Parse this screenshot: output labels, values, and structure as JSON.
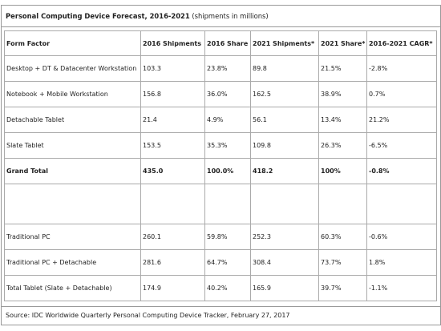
{
  "title": {
    "bold": "Personal Computing Device Forecast, 2016-2021",
    "normal": " (shipments in millions)"
  },
  "headers": [
    "Form Factor",
    "2016 Shipments",
    "2016 Share",
    "2021 Shipments*",
    "2021 Share*",
    "2016-2021 CAGR*"
  ],
  "rows": [
    [
      "Desktop + DT & Datacenter Workstation",
      "103.3",
      "23.8%",
      "89.8",
      "21.5%",
      "-2.8%"
    ],
    [
      "Notebook + Mobile Workstation",
      "156.8",
      "36.0%",
      "162.5",
      "38.9%",
      "0.7%"
    ],
    [
      "Detachable Tablet",
      "21.4",
      "4.9%",
      "56.1",
      "13.4%",
      "21.2%"
    ],
    [
      "Slate Tablet",
      "153.5",
      "35.3%",
      "109.8",
      "26.3%",
      "-6.5%"
    ],
    [
      "Grand Total",
      "435.0",
      "100.0%",
      "418.2",
      "100%",
      "-0.8%"
    ],
    [
      "",
      "",
      "",
      "",
      "",
      ""
    ],
    [
      "Traditional PC",
      "260.1",
      "59.8%",
      "252.3",
      "60.3%",
      "-0.6%"
    ],
    [
      "Traditional PC + Detachable",
      "281.6",
      "64.7%",
      "308.4",
      "73.7%",
      "1.8%"
    ],
    [
      "Total Tablet (Slate + Detachable)",
      "174.9",
      "40.2%",
      "165.9",
      "39.7%",
      "-1.1%"
    ]
  ],
  "source": "Source: IDC Worldwide Quarterly Personal Computing Device Tracker, February 27, 2017"
}
